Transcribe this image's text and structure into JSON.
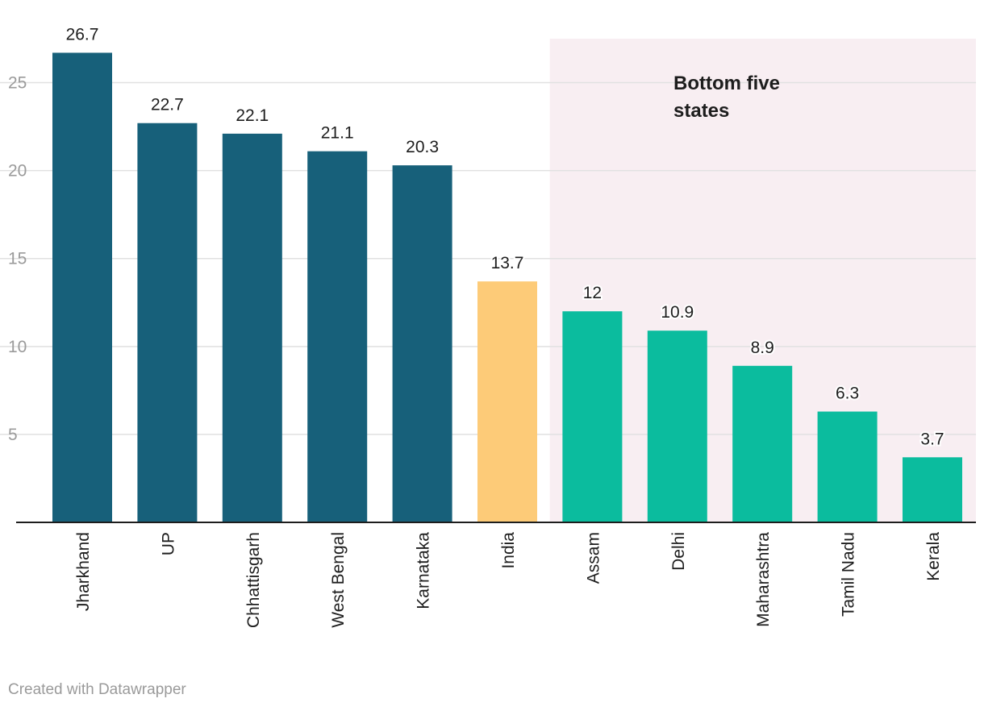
{
  "chart_data": {
    "type": "bar",
    "categories": [
      "Jharkhand",
      "UP",
      "Chhattisgarh",
      "West Bengal",
      "Karnataka",
      "India",
      "Assam",
      "Delhi",
      "Maharashtra",
      "Tamil Nadu",
      "Kerala"
    ],
    "values": [
      26.7,
      22.7,
      22.1,
      21.1,
      20.3,
      13.7,
      12,
      10.9,
      8.9,
      6.3,
      3.7
    ],
    "value_labels": [
      "26.7",
      "22.7",
      "22.1",
      "21.1",
      "20.3",
      "13.7",
      "12",
      "10.9",
      "8.9",
      "6.3",
      "3.7"
    ],
    "ylim": [
      0,
      27.5
    ],
    "yticks": [
      5,
      10,
      15,
      20,
      25
    ],
    "grid": true,
    "bar_colors": [
      "#17607a",
      "#17607a",
      "#17607a",
      "#17607a",
      "#17607a",
      "#fdcb78",
      "#0bbc9e",
      "#0bbc9e",
      "#0bbc9e",
      "#0bbc9e",
      "#0bbc9e"
    ],
    "highlight_region": {
      "from_category": "Assam",
      "to_category": "Kerala",
      "color": "#f8eef2",
      "label_lines": [
        "Bottom five",
        "states"
      ]
    }
  },
  "footer": "Created with Datawrapper"
}
